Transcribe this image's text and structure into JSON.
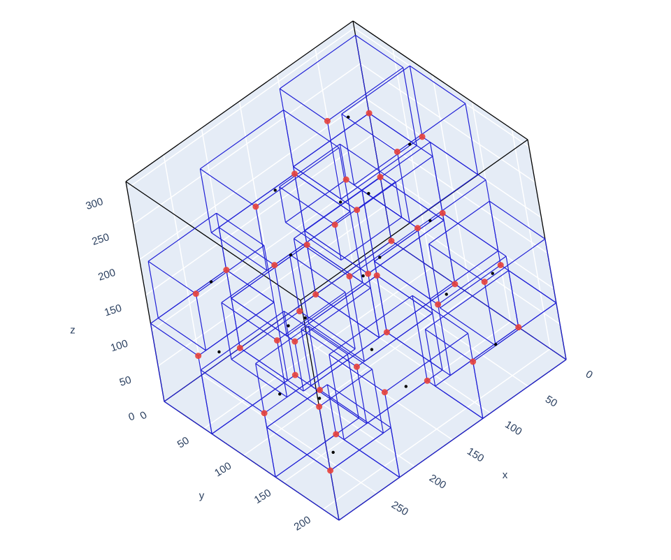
{
  "chart_data": {
    "type": "scatter3d",
    "xaxis_title": "x",
    "yaxis_title": "y",
    "zaxis_title": "z",
    "xlim": [
      0,
      300
    ],
    "ylim": [
      0,
      220
    ],
    "zlim": [
      0,
      310
    ],
    "xticks": [
      0,
      50,
      100,
      150,
      200,
      250
    ],
    "yticks": [
      0,
      50,
      100,
      150,
      200
    ],
    "zticks": [
      0,
      50,
      100,
      150,
      200,
      250,
      300
    ],
    "grid": true,
    "container_color": "#000000",
    "box_color": "#1f1fd6",
    "corner_color": "#e8413a",
    "center_color": "#000000",
    "boxes": [
      {
        "x": [
          0,
          100
        ],
        "y": [
          0,
          80
        ],
        "z": [
          0,
          90
        ]
      },
      {
        "x": [
          100,
          200
        ],
        "y": [
          0,
          80
        ],
        "z": [
          0,
          70
        ]
      },
      {
        "x": [
          200,
          300
        ],
        "y": [
          0,
          60
        ],
        "z": [
          0,
          110
        ]
      },
      {
        "x": [
          0,
          90
        ],
        "y": [
          80,
          160
        ],
        "z": [
          0,
          100
        ]
      },
      {
        "x": [
          90,
          190
        ],
        "y": [
          80,
          150
        ],
        "z": [
          0,
          80
        ]
      },
      {
        "x": [
          190,
          300
        ],
        "y": [
          60,
          140
        ],
        "z": [
          0,
          90
        ]
      },
      {
        "x": [
          0,
          110
        ],
        "y": [
          160,
          220
        ],
        "z": [
          0,
          80
        ]
      },
      {
        "x": [
          110,
          220
        ],
        "y": [
          150,
          220
        ],
        "z": [
          0,
          120
        ]
      },
      {
        "x": [
          220,
          300
        ],
        "y": [
          140,
          220
        ],
        "z": [
          0,
          70
        ]
      },
      {
        "x": [
          0,
          100
        ],
        "y": [
          0,
          80
        ],
        "z": [
          90,
          180
        ]
      },
      {
        "x": [
          100,
          200
        ],
        "y": [
          0,
          70
        ],
        "z": [
          70,
          170
        ]
      },
      {
        "x": [
          200,
          290
        ],
        "y": [
          0,
          60
        ],
        "z": [
          110,
          190
        ]
      },
      {
        "x": [
          0,
          90
        ],
        "y": [
          80,
          150
        ],
        "z": [
          100,
          200
        ]
      },
      {
        "x": [
          90,
          180
        ],
        "y": [
          80,
          150
        ],
        "z": [
          80,
          200
        ]
      },
      {
        "x": [
          180,
          270
        ],
        "y": [
          70,
          140
        ],
        "z": [
          90,
          170
        ]
      },
      {
        "x": [
          0,
          80
        ],
        "y": [
          150,
          220
        ],
        "z": [
          80,
          170
        ]
      },
      {
        "x": [
          230,
          300
        ],
        "y": [
          140,
          220
        ],
        "z": [
          70,
          160
        ]
      },
      {
        "x": [
          0,
          100
        ],
        "y": [
          0,
          60
        ],
        "z": [
          180,
          290
        ]
      },
      {
        "x": [
          100,
          210
        ],
        "y": [
          0,
          70
        ],
        "z": [
          170,
          260
        ]
      },
      {
        "x": [
          0,
          90
        ],
        "y": [
          70,
          140
        ],
        "z": [
          200,
          300
        ]
      },
      {
        "x": [
          90,
          170
        ],
        "y": [
          60,
          130
        ],
        "z": [
          200,
          250
        ]
      }
    ]
  }
}
